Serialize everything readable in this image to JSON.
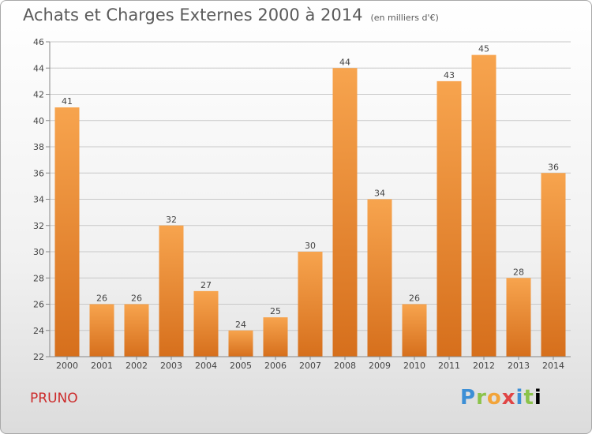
{
  "header": {
    "title": "Achats et Charges Externes 2000 à 2014",
    "subtitle": "(en milliers d'€)"
  },
  "footer": {
    "commune": "PRUNO",
    "logo_text": "Proxiti"
  },
  "colors": {
    "bar": "#f2963a",
    "bar_dark": "#d9721e",
    "grid": "#c8c8c8",
    "axis_text": "#444444",
    "title": "#5a5a5a",
    "commune": "#cc2a2a"
  },
  "chart_data": {
    "type": "bar",
    "categories": [
      "2000",
      "2001",
      "2002",
      "2003",
      "2004",
      "2005",
      "2006",
      "2007",
      "2008",
      "2009",
      "2010",
      "2011",
      "2012",
      "2013",
      "2014"
    ],
    "values": [
      41,
      26,
      26,
      32,
      27,
      24,
      25,
      30,
      44,
      34,
      26,
      43,
      45,
      28,
      36
    ],
    "ylim": [
      22,
      46
    ],
    "yticks": [
      22,
      24,
      26,
      28,
      30,
      32,
      34,
      36,
      38,
      40,
      42,
      44,
      46
    ],
    "grid": true,
    "xlabel": "",
    "ylabel": ""
  }
}
